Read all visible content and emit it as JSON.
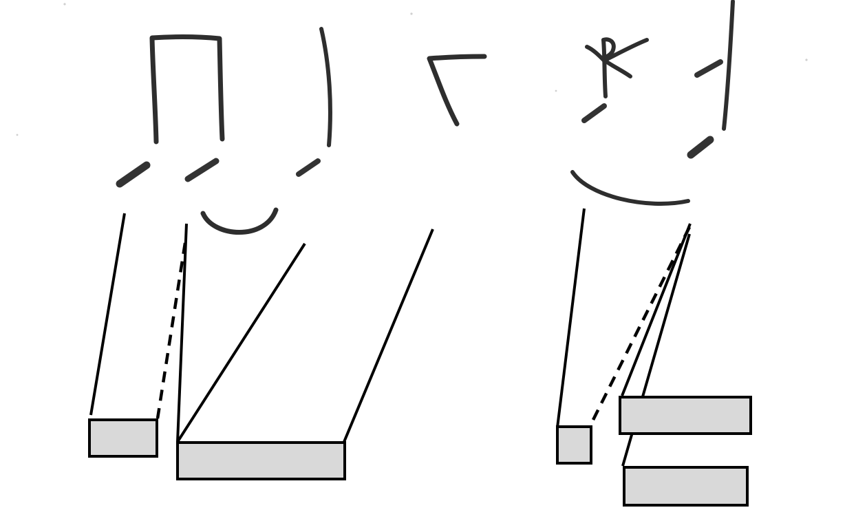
{
  "diagram": {
    "description_free": true,
    "colors": {
      "ink": "#2e2e2e",
      "line": "#000000",
      "box_fill": "#d9d9d9",
      "background": "#ffffff"
    },
    "connector_styles": [
      "solid",
      "dashed"
    ],
    "boxes": [
      {
        "id": "small-box-left"
      },
      {
        "id": "wide-box-left"
      },
      {
        "id": "small-box-right"
      },
      {
        "id": "wide-box-right-upper"
      },
      {
        "id": "wide-box-right-lower"
      }
    ]
  }
}
